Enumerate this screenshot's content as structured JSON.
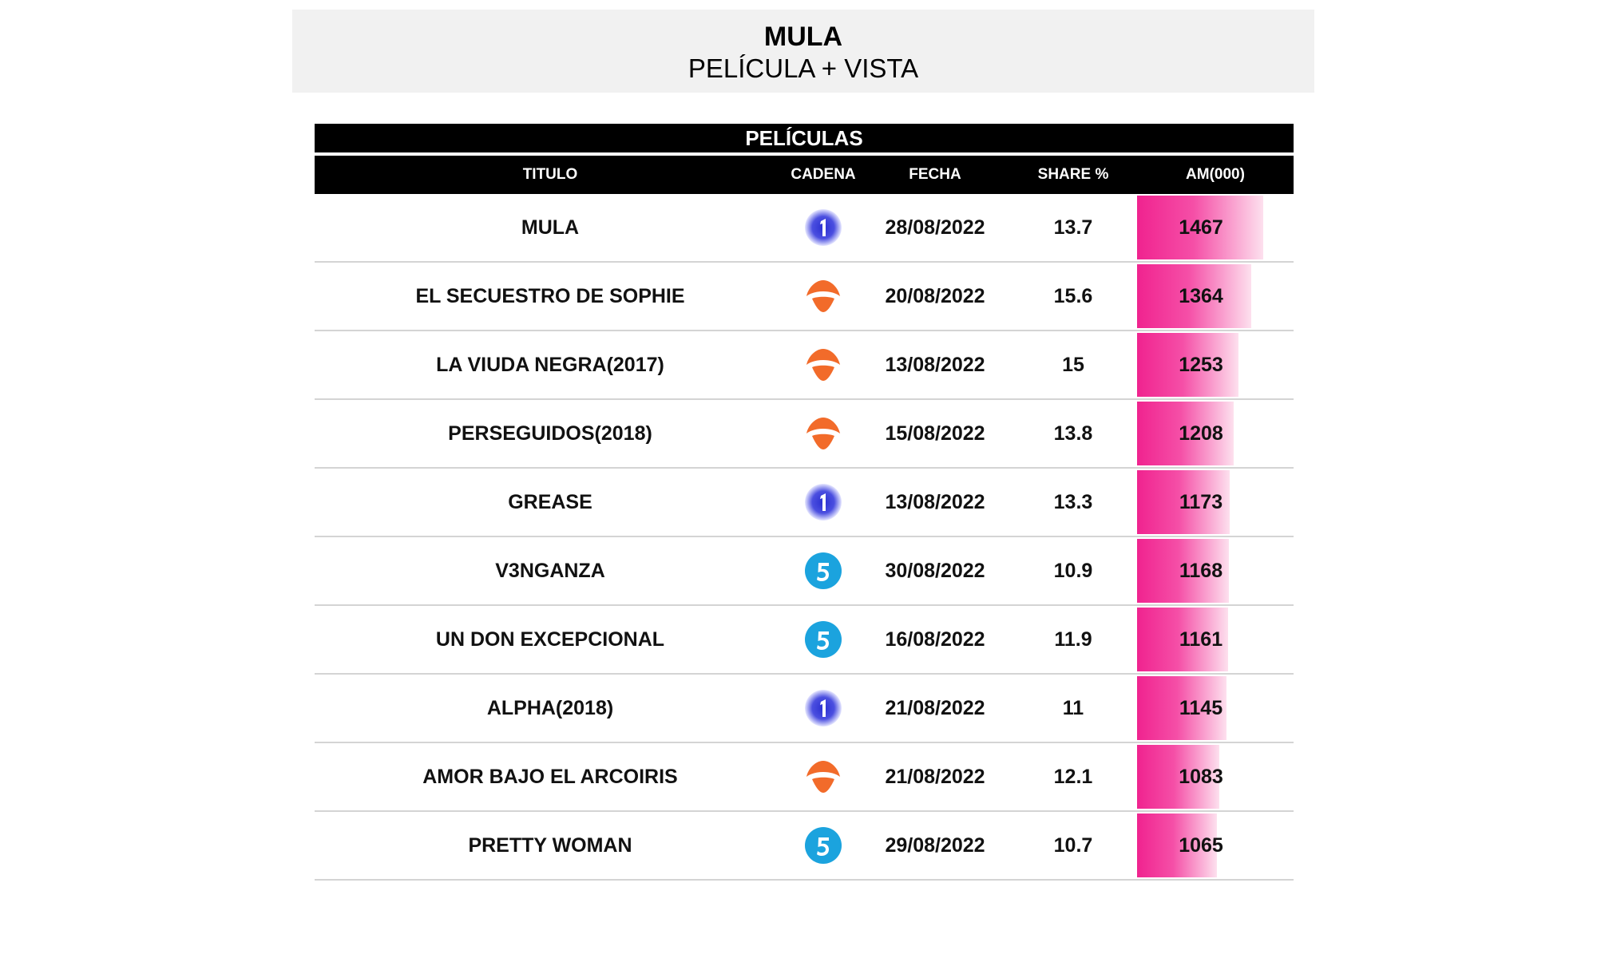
{
  "header": {
    "title": "MULA",
    "subtitle": "PELÍCULA + VISTA"
  },
  "table": {
    "section_label": "PELÍCULAS",
    "columns": [
      "TITULO",
      "CADENA",
      "FECHA",
      "SHARE %",
      "AM(000)"
    ]
  },
  "colors": {
    "la1": "#2a2fd0",
    "antena3": "#f26b2a",
    "telecinco": "#1ba3de",
    "am_bar": "#f0238f"
  },
  "chart_data": {
    "type": "table",
    "am_max": 1467,
    "rows": [
      {
        "title": "MULA",
        "channel": "la1-icon",
        "date": "28/08/2022",
        "share": "13.7",
        "am": 1467
      },
      {
        "title": "EL SECUESTRO DE SOPHIE",
        "channel": "antena3-icon",
        "date": "20/08/2022",
        "share": "15.6",
        "am": 1364
      },
      {
        "title": "LA VIUDA NEGRA(2017)",
        "channel": "antena3-icon",
        "date": "13/08/2022",
        "share": "15",
        "am": 1253
      },
      {
        "title": "PERSEGUIDOS(2018)",
        "channel": "antena3-icon",
        "date": "15/08/2022",
        "share": "13.8",
        "am": 1208
      },
      {
        "title": "GREASE",
        "channel": "la1-icon",
        "date": "13/08/2022",
        "share": "13.3",
        "am": 1173
      },
      {
        "title": "V3NGANZA",
        "channel": "telecinco-icon",
        "date": "30/08/2022",
        "share": "10.9",
        "am": 1168
      },
      {
        "title": "UN DON EXCEPCIONAL",
        "channel": "telecinco-icon",
        "date": "16/08/2022",
        "share": "11.9",
        "am": 1161
      },
      {
        "title": "ALPHA(2018)",
        "channel": "la1-icon",
        "date": "21/08/2022",
        "share": "11",
        "am": 1145
      },
      {
        "title": "AMOR BAJO EL ARCOIRIS",
        "channel": "antena3-icon",
        "date": "21/08/2022",
        "share": "12.1",
        "am": 1083
      },
      {
        "title": "PRETTY WOMAN",
        "channel": "telecinco-icon",
        "date": "29/08/2022",
        "share": "10.7",
        "am": 1065
      }
    ]
  }
}
